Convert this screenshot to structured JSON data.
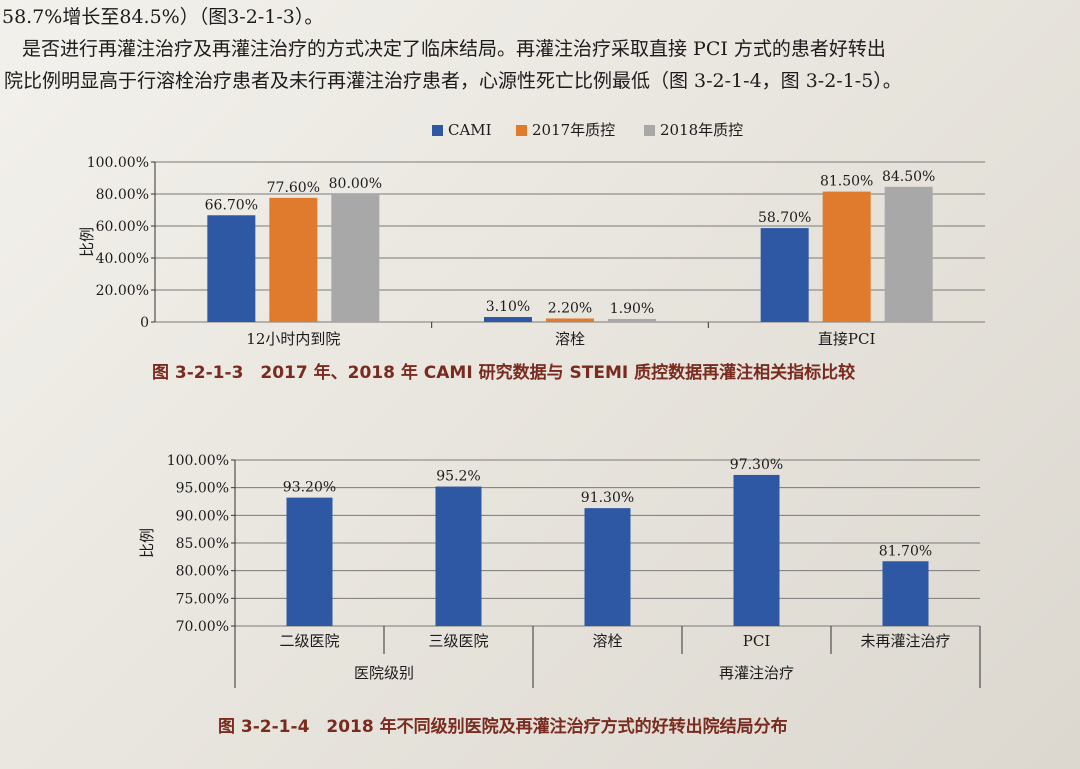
{
  "text": {
    "line1": "58.7%增长至84.5%）（图3-2-1-3）。",
    "line2": "是否进行再灌注治疗及再灌注治疗的方式决定了临床结局。再灌注治疗采取直接 PCI 方式的患者好转出",
    "line3": "院比例明显高于行溶栓治疗患者及未行再灌注治疗患者，心源性死亡比例最低（图 3-2-1-4，图 3-2-1-5）。"
  },
  "captions": {
    "fig1": "图 3-2-1-3　2017 年、2018 年 CAMI 研究数据与 STEMI 质控数据再灌注相关指标比较",
    "fig2": "图 3-2-1-4　2018 年不同级别医院及再灌注治疗方式的好转出院结局分布"
  },
  "chart_data": [
    {
      "type": "bar",
      "ylabel": "比例",
      "ylim": [
        0,
        100
      ],
      "yticks": [
        "100.00%",
        "80.00%",
        "60.00%",
        "40.00%",
        "20.00%",
        "0"
      ],
      "legend_position": "top",
      "grid": true,
      "categories": [
        "12小时内到院",
        "溶栓",
        "直接PCI"
      ],
      "series": [
        {
          "name": "CAMI",
          "color": "#2e57a4",
          "values": [
            66.7,
            3.1,
            58.7
          ],
          "labels": [
            "66.70%",
            "3.10%",
            "58.70%"
          ]
        },
        {
          "name": "2017年质控",
          "color": "#e07b2e",
          "values": [
            77.6,
            2.2,
            81.5
          ],
          "labels": [
            "77.60%",
            "2.20%",
            "81.50%"
          ]
        },
        {
          "name": "2018年质控",
          "color": "#a8a8a8",
          "values": [
            80.0,
            1.9,
            84.5
          ],
          "labels": [
            "80.00%",
            "1.90%",
            "84.50%"
          ]
        }
      ]
    },
    {
      "type": "bar",
      "ylabel": "比例",
      "ylim": [
        70,
        100
      ],
      "yticks": [
        "100.00%",
        "95.00%",
        "90.00%",
        "85.00%",
        "80.00%",
        "75.00%",
        "70.00%"
      ],
      "grid": true,
      "categories": [
        "二级医院",
        "三级医院",
        "溶栓",
        "PCI",
        "未再灌注治疗"
      ],
      "groups": [
        {
          "name": "医院级别",
          "span": [
            0,
            1
          ]
        },
        {
          "name": "再灌注治疗",
          "span": [
            2,
            4
          ]
        }
      ],
      "series": [
        {
          "color": "#2e57a4",
          "values": [
            93.2,
            95.2,
            91.3,
            97.3,
            81.7
          ],
          "labels": [
            "93.20%",
            "95.2%",
            "91.30%",
            "97.30%",
            "81.70%"
          ]
        }
      ]
    }
  ]
}
